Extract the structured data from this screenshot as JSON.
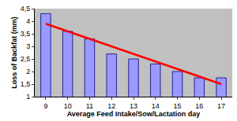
{
  "chart_data": {
    "type": "bar",
    "x_label": "Average Feed Intake/Sow/Lactation day",
    "y_label": "Loss of Backfat (mm)",
    "categories": [
      "9",
      "10",
      "11",
      "12",
      "13",
      "14",
      "15",
      "16",
      "17"
    ],
    "series": [
      {
        "type": "bar",
        "color": "#9999ff",
        "values": [
          4.3,
          3.6,
          3.3,
          2.7,
          2.5,
          2.3,
          2.0,
          1.75,
          1.75
        ]
      },
      {
        "type": "line",
        "color": "#ff0000",
        "line_style": "solid",
        "values": [
          3.9,
          3.6,
          3.3,
          3.0,
          2.7,
          2.4,
          2.1,
          1.8,
          1.5
        ]
      }
    ],
    "ylim": [
      1,
      4.5
    ],
    "yticks": [
      1,
      {
        "value": 1.5,
        "label": "1,5"
      },
      2,
      {
        "value": 2.5,
        "label": "2,5"
      },
      3,
      {
        "value": 3.5,
        "label": "3,5"
      },
      4,
      {
        "value": 4.5,
        "label": "4,5"
      }
    ],
    "grid": false
  }
}
